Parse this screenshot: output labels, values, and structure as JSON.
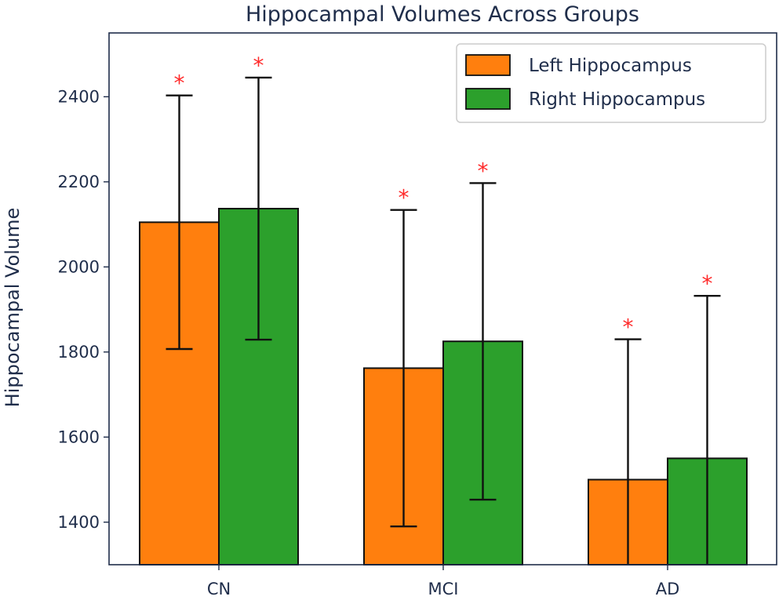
{
  "chart_data": {
    "type": "bar",
    "title": "Hippocampal Volumes Across Groups",
    "xlabel": "",
    "ylabel": "Hippocampal Volume",
    "categories": [
      "CN",
      "MCI",
      "AD"
    ],
    "ylim": [
      1300,
      2550
    ],
    "yticks": [
      1400,
      1600,
      1800,
      2000,
      2200,
      2400
    ],
    "grid": false,
    "legend_position": "top-right",
    "series": [
      {
        "name": "Left Hippocampus",
        "color": "#ff7f0e",
        "values": [
          2105,
          1762,
          1500
        ],
        "error": [
          298,
          372,
          330
        ]
      },
      {
        "name": "Right Hippocampus",
        "color": "#2ca02c",
        "values": [
          2137,
          1825,
          1550
        ],
        "error": [
          308,
          372,
          382
        ]
      }
    ],
    "annotation_marker": "*",
    "annotation_color": "#ff2a2a"
  }
}
